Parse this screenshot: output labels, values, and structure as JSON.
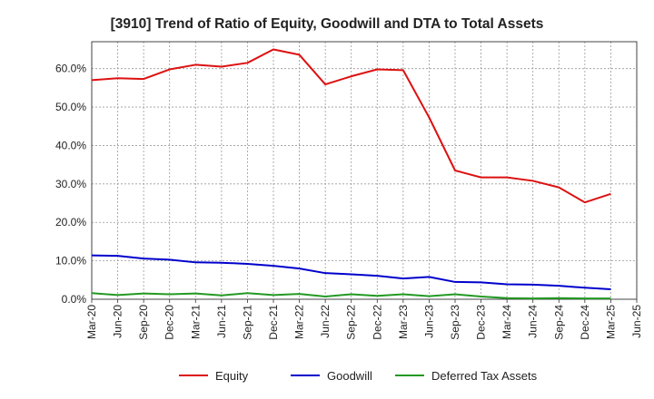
{
  "chart_data": {
    "type": "line",
    "title": "[3910]  Trend of Ratio of Equity, Goodwill and DTA to Total Assets",
    "xlabel": "",
    "ylabel": "",
    "ylim": [
      0,
      67
    ],
    "yticks": [
      0,
      10,
      20,
      30,
      40,
      50,
      60
    ],
    "ytick_labels": [
      "0.0%",
      "10.0%",
      "20.0%",
      "30.0%",
      "40.0%",
      "50.0%",
      "60.0%"
    ],
    "xtick_labels": [
      "Mar-20",
      "Jun-20",
      "Sep-20",
      "Dec-20",
      "Mar-21",
      "Jun-21",
      "Sep-21",
      "Dec-21",
      "Mar-22",
      "Jun-22",
      "Sep-22",
      "Dec-22",
      "Mar-23",
      "Jun-23",
      "Sep-23",
      "Dec-23",
      "Mar-24",
      "Jun-24",
      "Sep-24",
      "Dec-24",
      "Mar-25",
      "Jun-25"
    ],
    "x": [
      "Mar-20",
      "Jun-20",
      "Sep-20",
      "Dec-20",
      "Mar-21",
      "Jun-21",
      "Sep-21",
      "Dec-21",
      "Mar-22",
      "Jun-22",
      "Sep-22",
      "Dec-22",
      "Mar-23",
      "Jun-23",
      "Sep-23",
      "Dec-23",
      "Mar-24",
      "Jun-24",
      "Sep-24",
      "Dec-24",
      "Mar-25"
    ],
    "grid": true,
    "legend_position": "bottom",
    "series": [
      {
        "name": "Equity",
        "color": "#dd1111",
        "values": [
          57.0,
          57.5,
          57.3,
          59.8,
          61.0,
          60.5,
          61.5,
          65.0,
          63.6,
          55.9,
          58.0,
          59.8,
          59.6,
          47.3,
          33.5,
          31.7,
          31.7,
          30.8,
          29.1,
          25.2,
          27.4
        ]
      },
      {
        "name": "Goodwill",
        "color": "#0000cc",
        "values": [
          11.4,
          11.3,
          10.6,
          10.3,
          9.6,
          9.5,
          9.2,
          8.7,
          8.0,
          6.8,
          6.5,
          6.1,
          5.4,
          5.8,
          4.5,
          4.4,
          3.9,
          3.8,
          3.5,
          3.0,
          2.6
        ]
      },
      {
        "name": "Deferred Tax Assets",
        "color": "#229922",
        "values": [
          1.6,
          1.1,
          1.5,
          1.3,
          1.5,
          1.0,
          1.6,
          1.1,
          1.4,
          0.7,
          1.3,
          0.9,
          1.3,
          0.8,
          1.3,
          0.7,
          0.3,
          0.2,
          0.3,
          0.2,
          0.2
        ]
      }
    ]
  }
}
